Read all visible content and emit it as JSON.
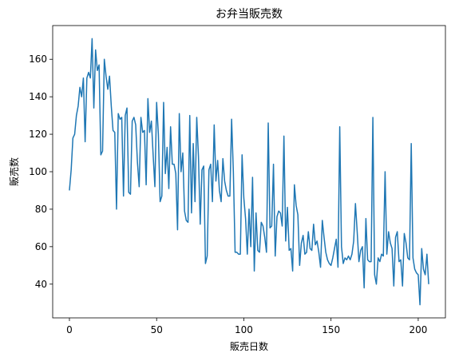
{
  "chart_data": {
    "type": "line",
    "title": "お弁当販売数",
    "xlabel": "販売日数",
    "ylabel": "販売数",
    "xlim": [
      -9.6,
      215.6
    ],
    "ylim": [
      22,
      178
    ],
    "xticks": [
      0,
      50,
      100,
      150,
      200
    ],
    "yticks": [
      40,
      60,
      80,
      100,
      120,
      140,
      160
    ],
    "grid": false,
    "series": [
      {
        "color": "#1f77b4",
        "x_start": 0,
        "x_step": 1,
        "values": [
          90,
          101,
          118,
          120,
          130,
          135,
          145,
          140,
          150,
          116,
          150,
          153,
          150,
          171,
          134,
          165,
          154,
          157,
          109,
          111,
          160,
          151,
          144,
          151,
          135,
          122,
          121,
          80,
          131,
          128,
          129,
          87,
          130,
          134,
          89,
          88,
          127,
          129,
          125,
          105,
          92,
          129,
          121,
          122,
          93,
          139,
          121,
          127,
          109,
          92,
          137,
          120,
          84,
          87,
          137,
          99,
          113,
          91,
          124,
          104,
          104,
          99,
          69,
          131,
          100,
          110,
          79,
          74,
          73,
          130,
          78,
          115,
          84,
          129,
          108,
          72,
          101,
          103,
          51,
          55,
          101,
          104,
          84,
          125,
          95,
          106,
          90,
          84,
          107,
          95,
          90,
          87,
          87,
          128,
          100,
          57,
          57,
          56,
          56,
          109,
          86,
          75,
          56,
          80,
          60,
          97,
          47,
          78,
          58,
          57,
          73,
          71,
          65,
          57,
          126,
          70,
          71,
          104,
          55,
          76,
          79,
          78,
          71,
          119,
          63,
          81,
          58,
          59,
          47,
          93,
          82,
          77,
          50,
          62,
          66,
          56,
          57,
          68,
          59,
          58,
          72,
          61,
          63,
          57,
          49,
          74,
          65,
          57,
          53,
          51,
          50,
          54,
          59,
          64,
          49,
          124,
          60,
          51,
          54,
          53,
          55,
          53,
          56,
          63,
          83,
          68,
          52,
          58,
          60,
          38,
          75,
          53,
          52,
          52,
          129,
          45,
          40,
          54,
          52,
          56,
          55,
          100,
          56,
          68,
          62,
          59,
          39,
          65,
          68,
          52,
          53,
          39,
          67,
          62,
          54,
          53,
          115,
          54,
          48,
          46,
          45,
          29,
          59,
          48,
          45,
          56,
          40
        ]
      }
    ]
  }
}
